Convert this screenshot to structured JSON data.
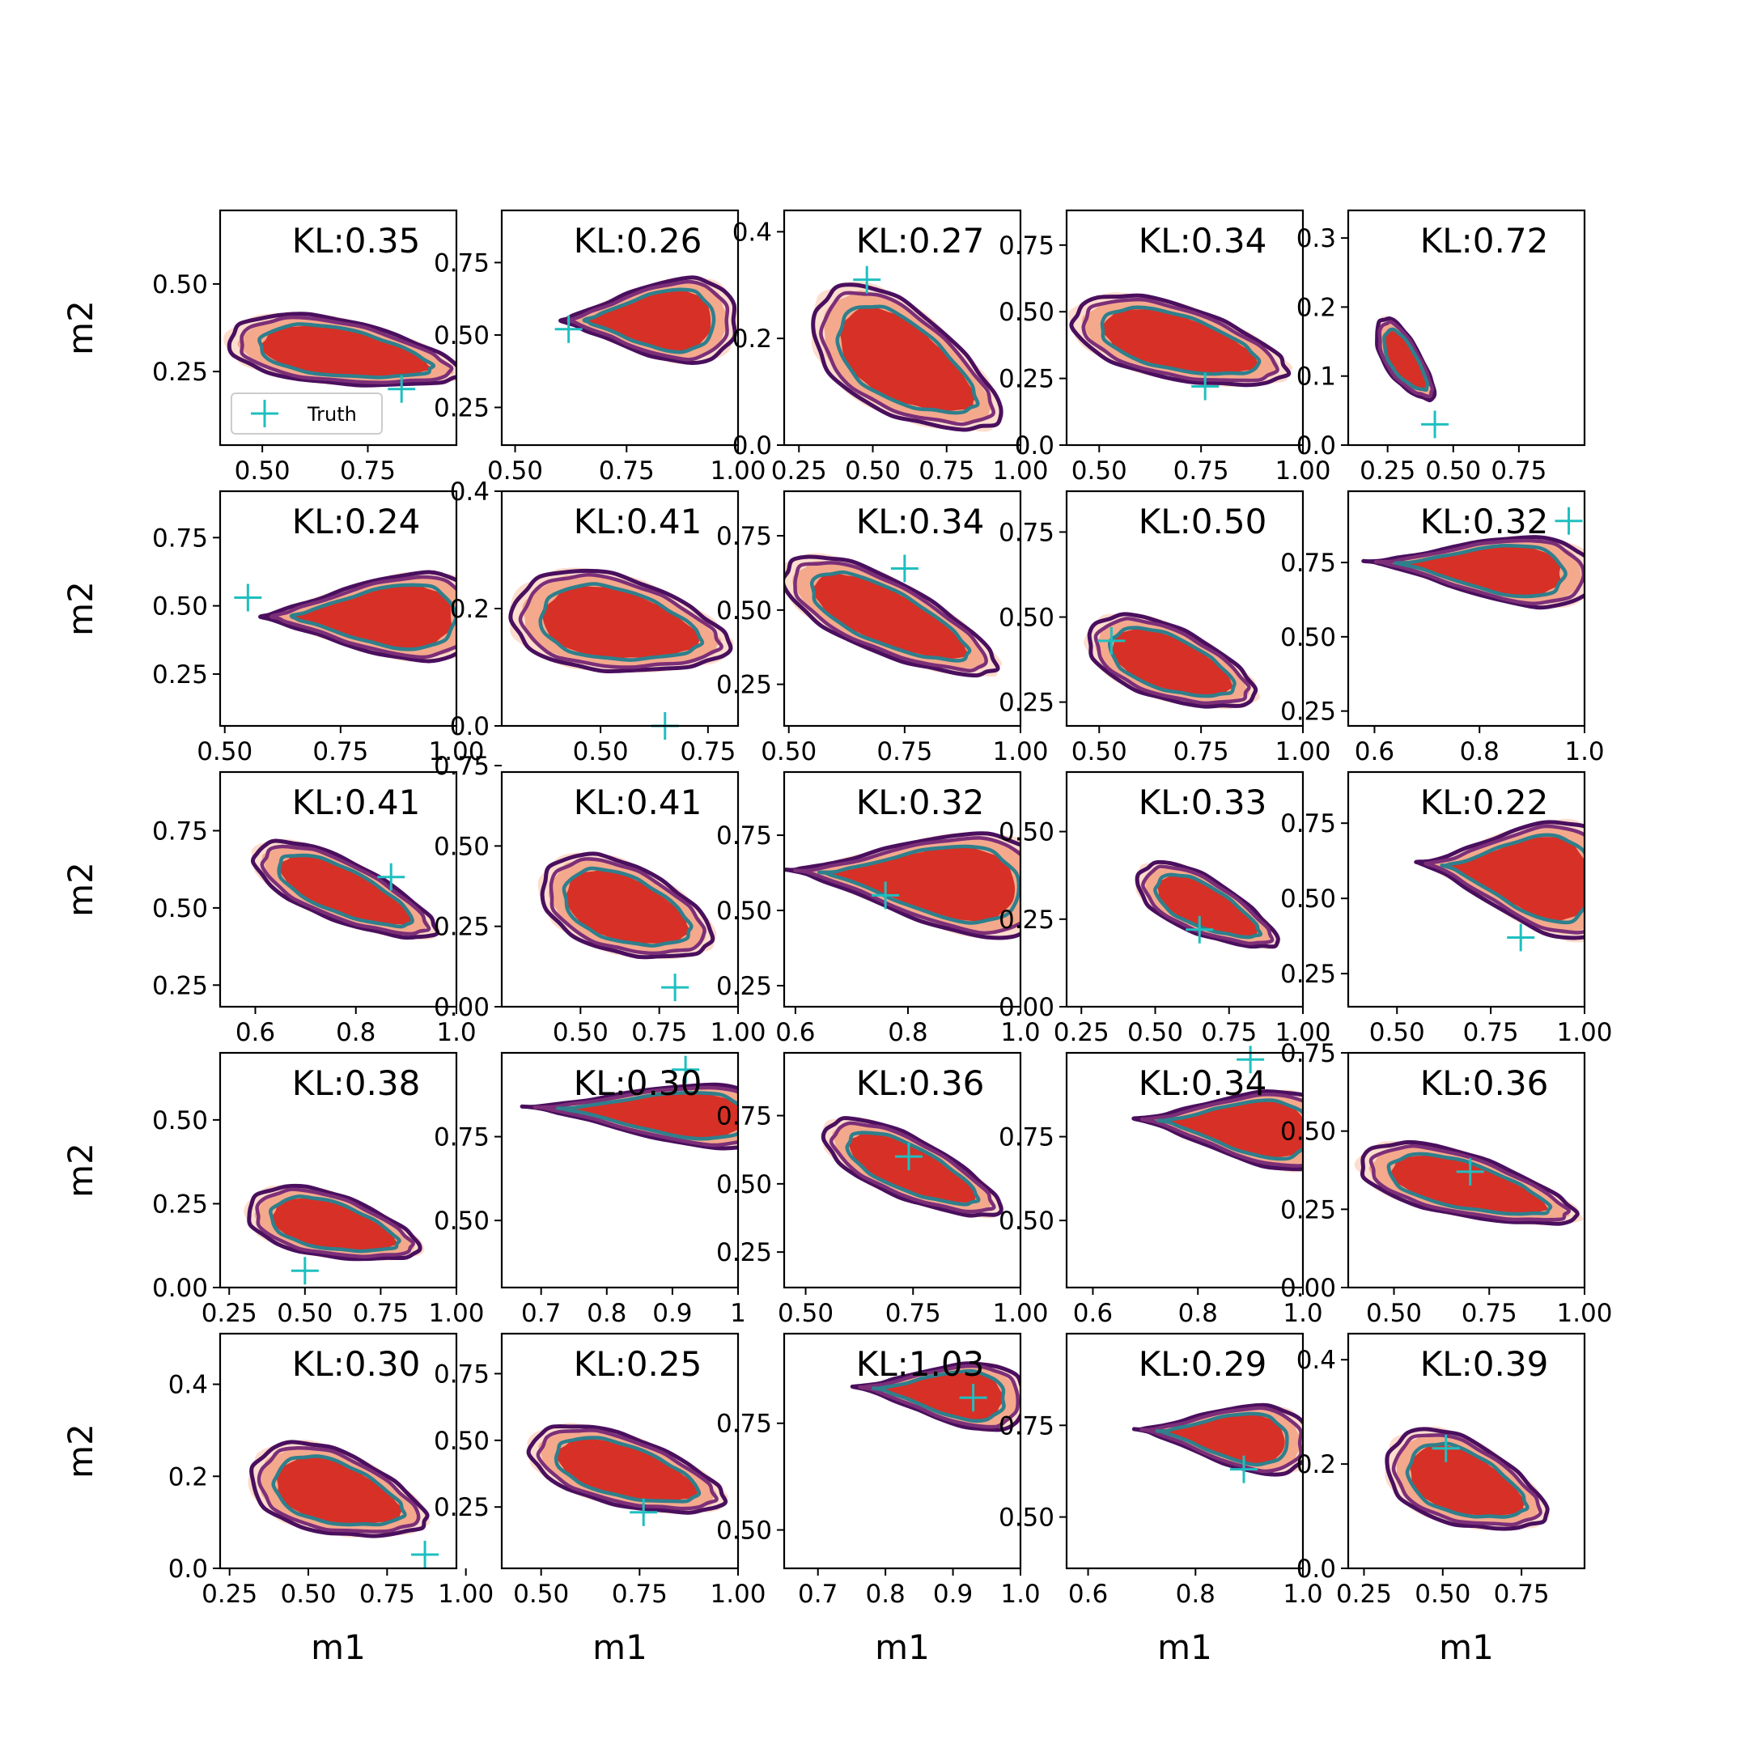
{
  "chart_data": {
    "type": "contour",
    "grid": false,
    "xlabel": "m1",
    "ylabel": "m2",
    "legend": {
      "label": "Truth",
      "placement": "lower-left",
      "panel": 0
    },
    "colors": {
      "filled_light": "#fcd9c9",
      "filled_mid": "#f4a98c",
      "filled_dark": "#d73026",
      "contour_outer": "#4a0f5e",
      "contour_mid": "#7c2f78",
      "contour_inner": "#2f7f8c",
      "truth_marker": "#1fbfbf"
    },
    "panels": [
      {
        "kl": "KL:0.35",
        "xlim": [
          0.4,
          0.96
        ],
        "ylim": [
          0.04,
          0.71
        ],
        "xticks": [
          "0.50",
          "0.75"
        ],
        "xtick_values": [
          0.5,
          0.75
        ],
        "yticks": [
          "0.25",
          "0.50"
        ],
        "ytick_values": [
          0.25,
          0.5
        ],
        "shape": "neg",
        "dens": [
          0.7,
          0.3,
          0.35,
          0.06
        ],
        "truth": [
          0.83,
          0.2
        ]
      },
      {
        "kl": "KL:0.26",
        "xlim": [
          0.47,
          1.0
        ],
        "ylim": [
          0.12,
          0.93
        ],
        "xticks": [
          "0.50",
          "0.75",
          "1.00"
        ],
        "xtick_values": [
          0.5,
          0.75,
          1.0
        ],
        "yticks": [
          "0.25",
          "0.50",
          "0.75"
        ],
        "ytick_values": [
          0.25,
          0.5,
          0.75
        ],
        "shape": "wedgeR",
        "dens": [
          0.8,
          0.55,
          0.18,
          0.2
        ],
        "truth": [
          0.62,
          0.52
        ]
      },
      {
        "kl": "KL:0.27",
        "xlim": [
          0.2,
          1.0
        ],
        "ylim": [
          0.0,
          0.44
        ],
        "xticks": [
          "0.25",
          "0.50",
          "0.75",
          "1.00"
        ],
        "xtick_values": [
          0.25,
          0.5,
          0.75,
          1.0
        ],
        "yticks": [
          "0.0",
          "0.2",
          "0.4"
        ],
        "ytick_values": [
          0.0,
          0.2,
          0.4
        ],
        "shape": "neg",
        "dens": [
          0.62,
          0.15,
          0.4,
          0.1
        ],
        "truth": [
          0.48,
          0.31
        ]
      },
      {
        "kl": "KL:0.34",
        "xlim": [
          0.42,
          1.0
        ],
        "ylim": [
          0.0,
          0.88
        ],
        "xticks": [
          "0.50",
          "0.75",
          "1.00"
        ],
        "xtick_values": [
          0.5,
          0.75,
          1.0
        ],
        "yticks": [
          "0.0",
          "0.25",
          "0.50",
          "0.75"
        ],
        "ytick_values": [
          0.0,
          0.25,
          0.5,
          0.75
        ],
        "shape": "negW",
        "dens": [
          0.7,
          0.38,
          0.32,
          0.12
        ],
        "truth": [
          0.76,
          0.22
        ]
      },
      {
        "kl": "KL:0.72",
        "xlim": [
          0.1,
          1.0
        ],
        "ylim": [
          0.0,
          0.34
        ],
        "xticks": [
          "0.25",
          "0.50",
          "0.75"
        ],
        "xtick_values": [
          0.25,
          0.5,
          0.75
        ],
        "yticks": [
          "0.0",
          "0.1",
          "0.2",
          "0.3"
        ],
        "ytick_values": [
          0.0,
          0.1,
          0.2,
          0.3
        ],
        "shape": "neg",
        "dens": [
          0.32,
          0.12,
          0.14,
          0.05
        ],
        "truth": [
          0.43,
          0.03
        ]
      },
      {
        "kl": "KL:0.24",
        "xlim": [
          0.49,
          1.0
        ],
        "ylim": [
          0.06,
          0.92
        ],
        "xticks": [
          "0.50",
          "0.75",
          "1.00"
        ],
        "xtick_values": [
          0.5,
          0.75,
          1.0
        ],
        "yticks": [
          "0.25",
          "0.50",
          "0.75"
        ],
        "ytick_values": [
          0.25,
          0.5,
          0.75
        ],
        "shape": "wedgeR",
        "dens": [
          0.82,
          0.46,
          0.22,
          0.22
        ],
        "truth": [
          0.55,
          0.53
        ]
      },
      {
        "kl": "KL:0.41",
        "xlim": [
          0.27,
          0.82
        ],
        "ylim": [
          0.0,
          0.4
        ],
        "xticks": [
          "0.50",
          "0.75"
        ],
        "xtick_values": [
          0.5,
          0.75
        ],
        "yticks": [
          "0.0",
          "0.2",
          "0.4"
        ],
        "ytick_values": [
          0.0,
          0.2,
          0.4
        ],
        "shape": "neg",
        "dens": [
          0.55,
          0.17,
          0.32,
          0.04
        ],
        "truth": [
          0.65,
          0.0
        ]
      },
      {
        "kl": "KL:0.34",
        "xlim": [
          0.49,
          1.0
        ],
        "ylim": [
          0.11,
          0.9
        ],
        "xticks": [
          "0.50",
          "0.75",
          "1.00"
        ],
        "xtick_values": [
          0.5,
          0.75,
          1.0
        ],
        "yticks": [
          "0.25",
          "0.50",
          "0.75"
        ],
        "ytick_values": [
          0.25,
          0.5,
          0.75
        ],
        "shape": "negW",
        "dens": [
          0.72,
          0.47,
          0.28,
          0.18
        ],
        "truth": [
          0.75,
          0.64
        ]
      },
      {
        "kl": "KL:0.50",
        "xlim": [
          0.42,
          1.0
        ],
        "ylim": [
          0.18,
          0.87
        ],
        "xticks": [
          "0.50",
          "0.75",
          "1.00"
        ],
        "xtick_values": [
          0.5,
          0.75,
          1.0
        ],
        "yticks": [
          "0.25",
          "0.50",
          "0.75"
        ],
        "ytick_values": [
          0.25,
          0.5,
          0.75
        ],
        "shape": "negW",
        "dens": [
          0.68,
          0.36,
          0.25,
          0.1
        ],
        "truth": [
          0.53,
          0.43
        ]
      },
      {
        "kl": "KL:0.32",
        "xlim": [
          0.55,
          1.0
        ],
        "ylim": [
          0.2,
          0.99
        ],
        "xticks": [
          "0.6",
          "0.8",
          "1.0"
        ],
        "xtick_values": [
          0.6,
          0.8,
          1.0
        ],
        "yticks": [
          "0.25",
          "0.50",
          "0.75"
        ],
        "ytick_values": [
          0.25,
          0.5,
          0.75
        ],
        "shape": "pos",
        "dens": [
          0.8,
          0.73,
          0.2,
          0.15
        ],
        "truth": [
          0.97,
          0.89
        ]
      },
      {
        "kl": "KL:0.41",
        "xlim": [
          0.53,
          1.0
        ],
        "ylim": [
          0.18,
          0.94
        ],
        "xticks": [
          "0.6",
          "0.8",
          "1.0"
        ],
        "xtick_values": [
          0.6,
          0.8,
          1.0
        ],
        "yticks": [
          "0.25",
          "0.50",
          "0.75"
        ],
        "ytick_values": [
          0.25,
          0.5,
          0.75
        ],
        "shape": "negW",
        "dens": [
          0.78,
          0.55,
          0.22,
          0.14
        ],
        "truth": [
          0.87,
          0.6
        ]
      },
      {
        "kl": "KL:0.41",
        "xlim": [
          0.25,
          1.0
        ],
        "ylim": [
          0.0,
          0.73
        ],
        "xticks": [
          "0.50",
          "0.75",
          "1.00"
        ],
        "xtick_values": [
          0.5,
          0.75,
          1.0
        ],
        "yticks": [
          "0.00",
          "0.25",
          "0.50",
          "0.75"
        ],
        "ytick_values": [
          0.0,
          0.25,
          0.5,
          0.75
        ],
        "shape": "negW",
        "dens": [
          0.65,
          0.3,
          0.33,
          0.1
        ],
        "truth": [
          0.8,
          0.06
        ]
      },
      {
        "kl": "KL:0.32",
        "xlim": [
          0.58,
          1.0
        ],
        "ylim": [
          0.18,
          0.96
        ],
        "xticks": [
          "0.6",
          "0.8",
          "1.0"
        ],
        "xtick_values": [
          0.6,
          0.8,
          1.0
        ],
        "yticks": [
          "0.25",
          "0.50",
          "0.75"
        ],
        "ytick_values": [
          0.25,
          0.5,
          0.75
        ],
        "shape": "pos",
        "dens": [
          0.82,
          0.6,
          0.22,
          0.22
        ],
        "truth": [
          0.76,
          0.55
        ]
      },
      {
        "kl": "KL:0.33",
        "xlim": [
          0.2,
          1.0
        ],
        "ylim": [
          0.0,
          0.67
        ],
        "xticks": [
          "0.25",
          "0.50",
          "0.75",
          "1.00"
        ],
        "xtick_values": [
          0.25,
          0.5,
          0.75,
          1.0
        ],
        "yticks": [
          "0.00",
          "0.25",
          "0.50"
        ],
        "ytick_values": [
          0.0,
          0.25,
          0.5
        ],
        "shape": "neg",
        "dens": [
          0.68,
          0.28,
          0.3,
          0.1
        ],
        "truth": [
          0.65,
          0.22
        ]
      },
      {
        "kl": "KL:0.22",
        "xlim": [
          0.37,
          1.0
        ],
        "ylim": [
          0.14,
          0.92
        ],
        "xticks": [
          "0.50",
          "0.75",
          "1.00"
        ],
        "xtick_values": [
          0.5,
          0.75,
          1.0
        ],
        "yticks": [
          "0.25",
          "0.50",
          "0.75"
        ],
        "ytick_values": [
          0.25,
          0.5,
          0.75
        ],
        "shape": "pos",
        "dens": [
          0.82,
          0.58,
          0.25,
          0.25
        ],
        "truth": [
          0.83,
          0.37
        ]
      },
      {
        "kl": "KL:0.38",
        "xlim": [
          0.22,
          1.0
        ],
        "ylim": [
          0.0,
          0.7
        ],
        "xticks": [
          "0.25",
          "0.50",
          "0.75",
          "1.00"
        ],
        "xtick_values": [
          0.25,
          0.5,
          0.75,
          1.0
        ],
        "yticks": [
          "0.00",
          "0.25",
          "0.50"
        ],
        "ytick_values": [
          0.0,
          0.25,
          0.5
        ],
        "shape": "neg",
        "dens": [
          0.6,
          0.18,
          0.36,
          0.07
        ],
        "truth": [
          0.5,
          0.05
        ]
      },
      {
        "kl": "KL:0.30",
        "xlim": [
          0.64,
          1.0
        ],
        "ylim": [
          0.3,
          1.0
        ],
        "xticks": [
          "0.7",
          "0.8",
          "0.9",
          "1"
        ],
        "xtick_values": [
          0.7,
          0.8,
          0.9,
          1.0
        ],
        "yticks": [
          "0.50",
          "0.75"
        ],
        "ytick_values": [
          0.5,
          0.75
        ],
        "shape": "pos",
        "dens": [
          0.87,
          0.82,
          0.18,
          0.12
        ],
        "truth": [
          0.92,
          0.95
        ]
      },
      {
        "kl": "KL:0.36",
        "xlim": [
          0.45,
          1.0
        ],
        "ylim": [
          0.12,
          0.98
        ],
        "xticks": [
          "0.50",
          "0.75",
          "1.00"
        ],
        "xtick_values": [
          0.5,
          0.75,
          1.0
        ],
        "yticks": [
          "0.25",
          "0.50",
          "0.75"
        ],
        "ytick_values": [
          0.25,
          0.5,
          0.75
        ],
        "shape": "negW",
        "dens": [
          0.75,
          0.55,
          0.25,
          0.16
        ],
        "truth": [
          0.74,
          0.6
        ]
      },
      {
        "kl": "KL:0.34",
        "xlim": [
          0.55,
          1.0
        ],
        "ylim": [
          0.3,
          1.0
        ],
        "xticks": [
          "0.6",
          "0.8",
          "1.0"
        ],
        "xtick_values": [
          0.6,
          0.8,
          1.0
        ],
        "yticks": [
          "0.50",
          "0.75"
        ],
        "ytick_values": [
          0.5,
          0.75
        ],
        "shape": "pos",
        "dens": [
          0.87,
          0.78,
          0.18,
          0.15
        ],
        "truth": [
          0.9,
          0.98
        ]
      },
      {
        "kl": "KL:0.36",
        "xlim": [
          0.38,
          1.0
        ],
        "ylim": [
          0.0,
          0.75
        ],
        "xticks": [
          "0.50",
          "0.75",
          "1.00"
        ],
        "xtick_values": [
          0.5,
          0.75,
          1.0
        ],
        "yticks": [
          "0.00",
          "0.25",
          "0.50",
          "0.75"
        ],
        "ytick_values": [
          0.0,
          0.25,
          0.5,
          0.75
        ],
        "shape": "neg",
        "dens": [
          0.7,
          0.32,
          0.36,
          0.1
        ],
        "truth": [
          0.7,
          0.37
        ]
      },
      {
        "kl": "KL:0.30",
        "xlim": [
          0.22,
          0.97
        ],
        "ylim": [
          0.0,
          0.51
        ],
        "xticks": [
          "0.25",
          "0.50",
          "0.75",
          "1.00"
        ],
        "xtick_values": [
          0.25,
          0.5,
          0.75,
          1.0
        ],
        "yticks": [
          "0.0",
          "0.2",
          "0.4"
        ],
        "ytick_values": [
          0.0,
          0.2,
          0.4
        ],
        "shape": "neg",
        "dens": [
          0.6,
          0.16,
          0.35,
          0.06
        ],
        "truth": [
          0.87,
          0.03
        ]
      },
      {
        "kl": "KL:0.25",
        "xlim": [
          0.4,
          1.0
        ],
        "ylim": [
          0.02,
          0.9
        ],
        "xticks": [
          "0.50",
          "0.75",
          "1.00"
        ],
        "xtick_values": [
          0.5,
          0.75,
          1.0
        ],
        "yticks": [
          "0.25",
          "0.50",
          "0.75"
        ],
        "ytick_values": [
          0.25,
          0.5,
          0.75
        ],
        "shape": "negW",
        "dens": [
          0.72,
          0.38,
          0.3,
          0.12
        ],
        "truth": [
          0.76,
          0.23
        ]
      },
      {
        "kl": "KL:1.03",
        "xlim": [
          0.65,
          1.0
        ],
        "ylim": [
          0.41,
          0.96
        ],
        "xticks": [
          "0.7",
          "0.8",
          "0.9",
          "1.0"
        ],
        "xtick_values": [
          0.7,
          0.8,
          0.9,
          1.0
        ],
        "yticks": [
          "0.50",
          "0.75"
        ],
        "ytick_values": [
          0.5,
          0.75
        ],
        "shape": "pos",
        "dens": [
          0.88,
          0.82,
          0.12,
          0.1
        ],
        "truth": [
          0.93,
          0.81
        ]
      },
      {
        "kl": "KL:0.29",
        "xlim": [
          0.56,
          1.0
        ],
        "ylim": [
          0.36,
          1.0
        ],
        "xticks": [
          "0.6",
          "0.8",
          "1.0"
        ],
        "xtick_values": [
          0.6,
          0.8,
          1.0
        ],
        "yticks": [
          "0.50",
          "0.75"
        ],
        "ytick_values": [
          0.5,
          0.75
        ],
        "shape": "pos",
        "dens": [
          0.85,
          0.72,
          0.15,
          0.12
        ],
        "truth": [
          0.89,
          0.63
        ]
      },
      {
        "kl": "KL:0.39",
        "xlim": [
          0.2,
          0.95
        ],
        "ylim": [
          0.0,
          0.45
        ],
        "xticks": [
          "0.25",
          "0.50",
          "0.75"
        ],
        "xtick_values": [
          0.25,
          0.5,
          0.75
        ],
        "yticks": [
          "0.0",
          "0.2",
          "0.4"
        ],
        "ytick_values": [
          0.0,
          0.2,
          0.4
        ],
        "shape": "neg",
        "dens": [
          0.58,
          0.16,
          0.32,
          0.06
        ],
        "truth": [
          0.51,
          0.23
        ]
      }
    ]
  }
}
